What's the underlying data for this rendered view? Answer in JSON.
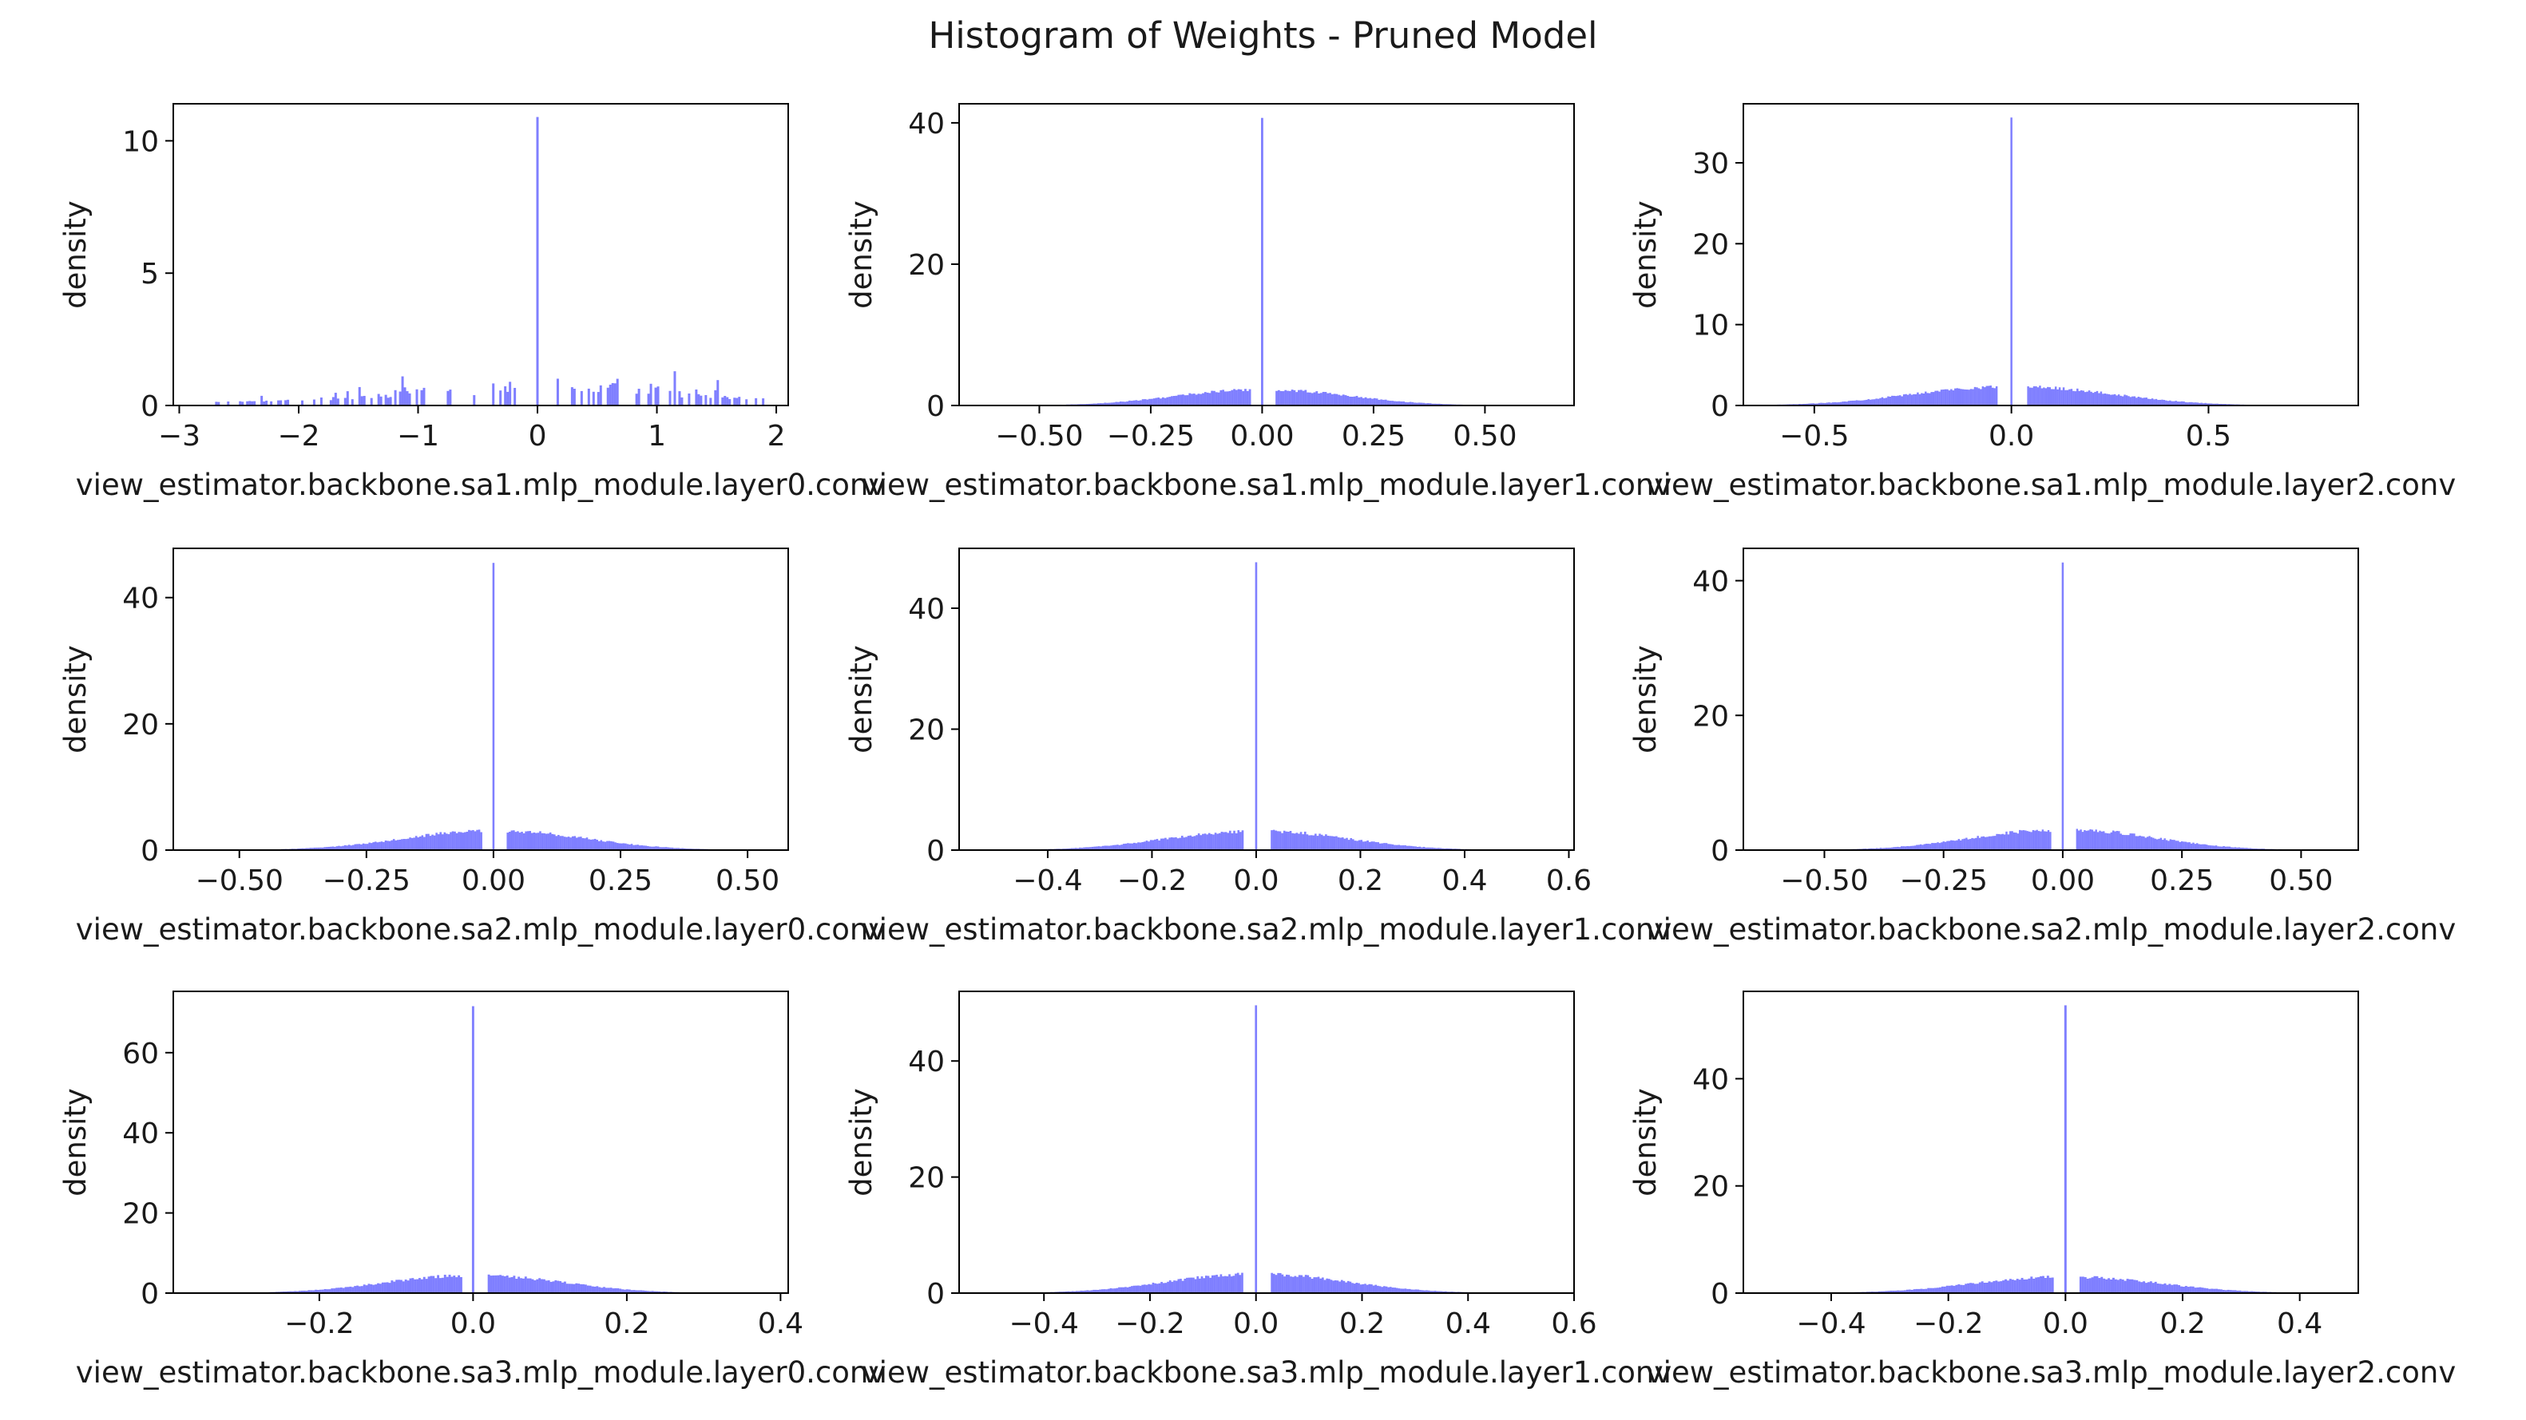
{
  "figure": {
    "title": "Histogram of Weights - Pruned Model"
  },
  "style": {
    "bar_color": "#0000ff",
    "bar_opacity": 0.5,
    "axis_color": "#000000",
    "text_color": "#1a1a1a"
  },
  "chart_data": [
    {
      "type": "bar",
      "title": "",
      "xlabel": "view_estimator.backbone.sa1.mlp_module.layer0.conv",
      "ylabel": "density",
      "xlim": [
        -3.05,
        2.1
      ],
      "ylim": [
        0,
        11.4
      ],
      "xticks": [
        -3,
        -2,
        -1,
        0,
        1,
        2
      ],
      "xtick_labels": [
        "−3",
        "−2",
        "−1",
        "0",
        "1",
        "2"
      ],
      "yticks": [
        0,
        5,
        10
      ],
      "ytick_labels": [
        "0",
        "5",
        "10"
      ],
      "bin_width": 0.02,
      "peak_density": 10.9,
      "nonzero_range": [
        -2.8,
        1.95
      ],
      "grid": false
    },
    {
      "type": "bar",
      "title": "",
      "xlabel": "view_estimator.backbone.sa1.mlp_module.layer1.conv",
      "ylabel": "density",
      "xlim": [
        -0.68,
        0.7
      ],
      "ylim": [
        0,
        42.7
      ],
      "xticks": [
        -0.5,
        -0.25,
        0,
        0.25,
        0.5
      ],
      "xtick_labels": [
        "−0.50",
        "−0.25",
        "0.00",
        "0.25",
        "0.50"
      ],
      "yticks": [
        0,
        20,
        40
      ],
      "ytick_labels": [
        "0",
        "20",
        "40"
      ],
      "bin_width": 0.005,
      "peak_density": 40.7,
      "nonzero_range": [
        -0.6,
        0.62
      ],
      "shoulder_density": 2.2,
      "grid": false
    },
    {
      "type": "bar",
      "title": "",
      "xlabel": "view_estimator.backbone.sa1.mlp_module.layer2.conv",
      "ylabel": "density",
      "xlim": [
        -0.68,
        0.88
      ],
      "ylim": [
        0,
        37.3
      ],
      "xticks": [
        -0.5,
        0,
        0.5
      ],
      "xtick_labels": [
        "−0.5",
        "0.0",
        "0.5"
      ],
      "yticks": [
        0,
        10,
        20,
        30
      ],
      "ytick_labels": [
        "0",
        "10",
        "20",
        "30"
      ],
      "bin_width": 0.005,
      "peak_density": 35.6,
      "nonzero_range": [
        -0.6,
        0.8
      ],
      "shoulder_density": 2.3,
      "grid": false
    },
    {
      "type": "bar",
      "title": "",
      "xlabel": "view_estimator.backbone.sa2.mlp_module.layer0.conv",
      "ylabel": "density",
      "xlim": [
        -0.63,
        0.58
      ],
      "ylim": [
        0,
        47.8
      ],
      "xticks": [
        -0.5,
        -0.25,
        0,
        0.25,
        0.5
      ],
      "xtick_labels": [
        "−0.50",
        "−0.25",
        "0.00",
        "0.25",
        "0.50"
      ],
      "yticks": [
        0,
        20,
        40
      ],
      "ytick_labels": [
        "0",
        "20",
        "40"
      ],
      "bin_width": 0.004,
      "peak_density": 45.5,
      "nonzero_range": [
        -0.57,
        0.52
      ],
      "shoulder_density": 3.0,
      "grid": false
    },
    {
      "type": "bar",
      "title": "",
      "xlabel": "view_estimator.backbone.sa2.mlp_module.layer1.conv",
      "ylabel": "density",
      "xlim": [
        -0.57,
        0.61
      ],
      "ylim": [
        0,
        49.9
      ],
      "xticks": [
        -0.4,
        -0.2,
        0,
        0.2,
        0.4,
        0.6
      ],
      "xtick_labels": [
        "−0.4",
        "−0.2",
        "0.0",
        "0.2",
        "0.4",
        "0.6"
      ],
      "yticks": [
        0,
        20,
        40
      ],
      "ytick_labels": [
        "0",
        "20",
        "40"
      ],
      "bin_width": 0.004,
      "peak_density": 47.6,
      "nonzero_range": [
        -0.52,
        0.55
      ],
      "shoulder_density": 3.1,
      "grid": false
    },
    {
      "type": "bar",
      "title": "",
      "xlabel": "view_estimator.backbone.sa2.mlp_module.layer2.conv",
      "ylabel": "density",
      "xlim": [
        -0.67,
        0.62
      ],
      "ylim": [
        0,
        44.8
      ],
      "xticks": [
        -0.5,
        -0.25,
        0,
        0.25,
        0.5
      ],
      "xtick_labels": [
        "−0.50",
        "−0.25",
        "0.00",
        "0.25",
        "0.50"
      ],
      "yticks": [
        0,
        20,
        40
      ],
      "ytick_labels": [
        "0",
        "20",
        "40"
      ],
      "bin_width": 0.004,
      "peak_density": 42.7,
      "nonzero_range": [
        -0.6,
        0.56
      ],
      "shoulder_density": 3.0,
      "grid": false
    },
    {
      "type": "bar",
      "title": "",
      "xlabel": "view_estimator.backbone.sa3.mlp_module.layer0.conv",
      "ylabel": "density",
      "xlim": [
        -0.39,
        0.41
      ],
      "ylim": [
        0,
        75.3
      ],
      "xticks": [
        -0.2,
        0,
        0.2,
        0.4
      ],
      "xtick_labels": [
        "−0.2",
        "0.0",
        "0.2",
        "0.4"
      ],
      "yticks": [
        0,
        20,
        40,
        60
      ],
      "ytick_labels": [
        "0",
        "20",
        "40",
        "60"
      ],
      "bin_width": 0.003,
      "peak_density": 71.6,
      "nonzero_range": [
        -0.35,
        0.37
      ],
      "shoulder_density": 4.3,
      "grid": false
    },
    {
      "type": "bar",
      "title": "",
      "xlabel": "view_estimator.backbone.sa3.mlp_module.layer1.conv",
      "ylabel": "density",
      "xlim": [
        -0.56,
        0.6
      ],
      "ylim": [
        0,
        52.0
      ],
      "xticks": [
        -0.4,
        -0.2,
        0,
        0.2,
        0.4,
        0.6
      ],
      "xtick_labels": [
        "−0.4",
        "−0.2",
        "0.0",
        "0.2",
        "0.4",
        "0.6"
      ],
      "yticks": [
        0,
        20,
        40
      ],
      "ytick_labels": [
        "0",
        "20",
        "40"
      ],
      "bin_width": 0.004,
      "peak_density": 49.6,
      "nonzero_range": [
        -0.5,
        0.54
      ],
      "shoulder_density": 3.2,
      "grid": false
    },
    {
      "type": "bar",
      "title": "",
      "xlabel": "view_estimator.backbone.sa3.mlp_module.layer2.conv",
      "ylabel": "density",
      "xlim": [
        -0.55,
        0.5
      ],
      "ylim": [
        0,
        56.3
      ],
      "xticks": [
        -0.4,
        -0.2,
        0,
        0.2,
        0.4
      ],
      "xtick_labels": [
        "−0.4",
        "−0.2",
        "0.0",
        "0.2",
        "0.4"
      ],
      "yticks": [
        0,
        20,
        40
      ],
      "ytick_labels": [
        "0",
        "20",
        "40"
      ],
      "bin_width": 0.004,
      "peak_density": 53.7,
      "nonzero_range": [
        -0.5,
        0.45
      ],
      "shoulder_density": 3.0,
      "grid": false
    }
  ]
}
